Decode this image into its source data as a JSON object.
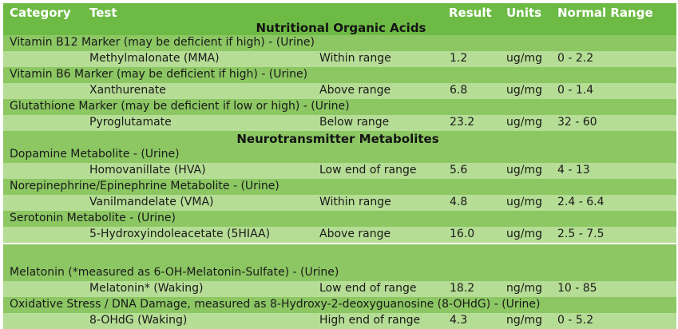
{
  "headers": {
    "category": "Category",
    "test": "Test",
    "result": "Result",
    "units": "Units",
    "normal_range": "Normal Range"
  },
  "sections": [
    {
      "title": "Nutritional Organic Acids",
      "groups": [
        {
          "marker": "Vitamin B12 Marker (may be deficient if high) - (Urine)",
          "test": "Methylmalonate (MMA)",
          "status": "Within range",
          "result": "1.2",
          "units": "ug/mg",
          "range": "0 - 2.2"
        },
        {
          "marker": "Vitamin B6 Marker (may be deficient if high) - (Urine)",
          "test": "Xanthurenate",
          "status": "Above range",
          "result": "6.8",
          "units": "ug/mg",
          "range": "0 - 1.4"
        },
        {
          "marker": "Glutathione Marker (may be deficient if low or high) - (Urine)",
          "test": "Pyroglutamate",
          "status": "Below range",
          "result": "23.2",
          "units": "ug/mg",
          "range": "32 - 60"
        }
      ]
    },
    {
      "title": "Neurotransmitter Metabolites",
      "groups": [
        {
          "marker": "Dopamine Metabolite - (Urine)",
          "test": "Homovanillate (HVA)",
          "status": "Low end of range",
          "result": "5.6",
          "units": "ug/mg",
          "range": "4 - 13"
        },
        {
          "marker": "Norepinephrine/Epinephrine Metabolite - (Urine)",
          "test": "Vanilmandelate (VMA)",
          "status": "Within range",
          "result": "4.8",
          "units": "ug/mg",
          "range": "2.4 - 6.4"
        },
        {
          "marker": "Serotonin Metabolite - (Urine)",
          "test": "5-Hydroxyindoleacetate (5HIAA)",
          "status": "Above range",
          "result": "16.0",
          "units": "ug/mg",
          "range": "2.5 - 7.5"
        }
      ]
    },
    {
      "title": "",
      "groups": [
        {
          "marker": "Melatonin (*measured as 6-OH-Melatonin-Sulfate) - (Urine)",
          "test": "Melatonin* (Waking)",
          "status": "Low end of range",
          "result": "18.2",
          "units": "ng/mg",
          "range": "10 - 85"
        },
        {
          "marker": "Oxidative Stress / DNA Damage, measured as 8-Hydroxy-2-deoxyguanosine (8-OHdG) - (Urine)",
          "test": "8-OHdG (Waking)",
          "status": "High end of range",
          "result": "4.3",
          "units": "ng/mg",
          "range": "0 - 5.2"
        }
      ]
    }
  ],
  "colors": {
    "header_bg": "#6dbb45",
    "marker_row_bg": "#8cc763",
    "value_row_bg": "#b6dd95"
  }
}
